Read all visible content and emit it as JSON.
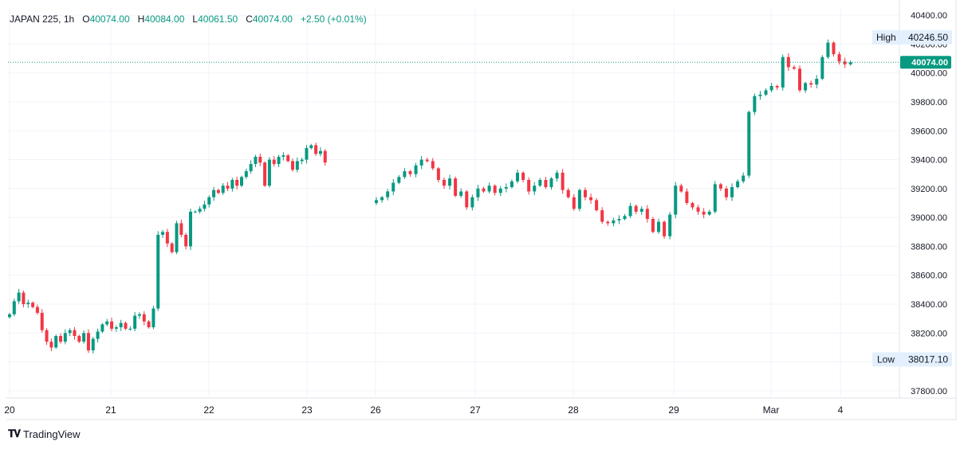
{
  "header": {
    "symbol": "JAPAN 225",
    "interval": "1h",
    "open_label": "O",
    "open": "40074.00",
    "high_label": "H",
    "high": "40084.00",
    "low_label": "L",
    "low": "40061.50",
    "close_label": "C",
    "close": "40074.00",
    "change": "+2.50 (+0.01%)"
  },
  "footer": {
    "brand": "TradingView"
  },
  "colors": {
    "up": "#089981",
    "down": "#f23645",
    "grid": "#f0f3fa",
    "price_label": "#089981"
  },
  "chart_data": {
    "type": "candlestick",
    "title": "",
    "ylim": [
      37750,
      40450
    ],
    "y_ticks": [
      "40400.00",
      "40200.00",
      "40000.00",
      "39800.00",
      "39600.00",
      "39400.00",
      "39200.00",
      "39000.00",
      "38800.00",
      "38600.00",
      "38400.00",
      "38200.00",
      "38000.00",
      "37800.00"
    ],
    "x_ticks": [
      "20",
      "21",
      "22",
      "23",
      "26",
      "27",
      "28",
      "29",
      "Mar",
      "4"
    ],
    "last_price": "40074.00",
    "high_label": "High",
    "high_value": "40246.50",
    "low_label": "Low",
    "low_value": "38017.10",
    "closes": [
      [
        38330,
        38420,
        38480,
        38400,
        38410,
        38380,
        38340,
        38220,
        38140,
        38100,
        38180,
        38140,
        38200,
        38220,
        38180,
        38140,
        38200,
        38080,
        38160,
        38210,
        38260,
        38280,
        38230,
        38240,
        38270,
        38230,
        38230,
        38320,
        38330,
        38280,
        38240,
        38370,
        38880,
        38900,
        38820,
        38760,
        38960,
        38880,
        38800,
        39040,
        39040,
        39060,
        39090,
        39140,
        39190,
        39170,
        39220,
        39200,
        39260,
        39220,
        39280,
        39320,
        39370,
        39420,
        39380,
        39220,
        39400,
        39370,
        39420,
        39430,
        39390,
        39330,
        39390,
        39400,
        39480,
        39500,
        39440,
        39460,
        39380
      ],
      [
        39120,
        39140,
        39180,
        39240,
        39280,
        39320,
        39300,
        39360,
        39400,
        39390,
        39340,
        39260,
        39220,
        39270,
        39150,
        39180,
        39070,
        39140,
        39200,
        39180,
        39220,
        39170,
        39200,
        39210,
        39250,
        39310,
        39260,
        39180,
        39220,
        39260,
        39210,
        39270,
        39310,
        39190,
        39140,
        39060,
        39190,
        39140,
        39120,
        39050,
        38970,
        38960,
        38980,
        38990,
        39010,
        39080,
        39040,
        39060,
        38990,
        38900,
        38970,
        38870,
        39020,
        39220,
        39180,
        39100,
        39070,
        39040,
        39020,
        39040,
        39230,
        39200,
        39140,
        39210,
        39250,
        39290,
        39730,
        39840,
        39850,
        39880,
        39910,
        39900,
        40110,
        40040,
        40030,
        39880,
        39930,
        39920,
        39960,
        40110,
        40210,
        40130,
        40080,
        40060,
        40074
      ]
    ]
  }
}
